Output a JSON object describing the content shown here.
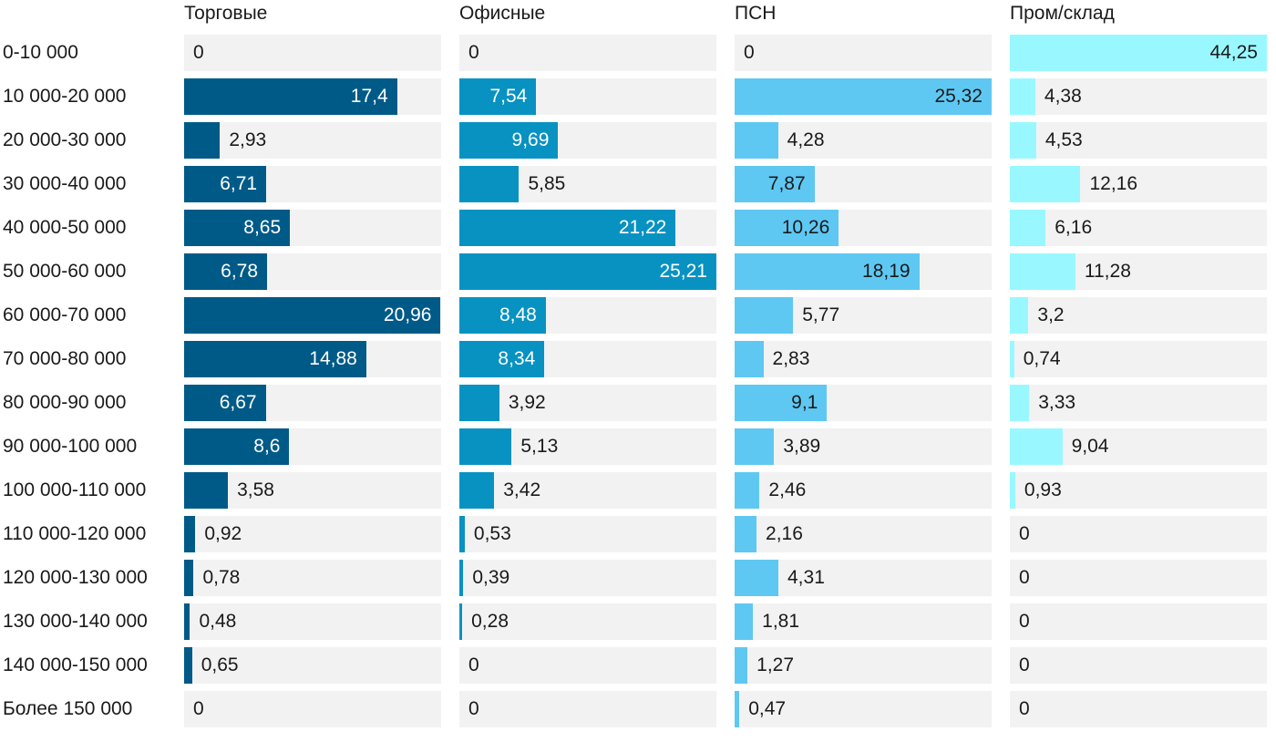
{
  "chart_data": {
    "type": "bar",
    "orientation": "horizontal",
    "layout": "small-multiples",
    "categories": [
      "0-10 000",
      "10 000-20 000",
      "20 000-30 000",
      "30 000-40 000",
      "40 000-50 000",
      "50 000-60 000",
      "60 000-70 000",
      "70 000-80 000",
      "80 000-90 000",
      "90 000-100 000",
      "100 000-110 000",
      "110 000-120 000",
      "120 000-130 000",
      "130 000-140 000",
      "140 000-150 000",
      "Более 150 000"
    ],
    "series": [
      {
        "name": "Торговые",
        "color": "#005a87",
        "max": 21,
        "values": [
          0,
          17.4,
          2.93,
          6.71,
          8.65,
          6.78,
          20.96,
          14.88,
          6.67,
          8.6,
          3.58,
          0.92,
          0.78,
          0.48,
          0.65,
          0
        ],
        "labels": [
          "0",
          "17,4",
          "2,93",
          "6,71",
          "8,65",
          "6,78",
          "20,96",
          "14,88",
          "6,67",
          "8,6",
          "3,58",
          "0,92",
          "0,78",
          "0,48",
          "0,65",
          "0"
        ]
      },
      {
        "name": "Офисные",
        "color": "#0892c2",
        "max": 25.21,
        "values": [
          0,
          7.54,
          9.69,
          5.85,
          21.22,
          25.21,
          8.48,
          8.34,
          3.92,
          5.13,
          3.42,
          0.53,
          0.39,
          0.28,
          0,
          0
        ],
        "labels": [
          "0",
          "7,54",
          "9,69",
          "5,85",
          "21,22",
          "25,21",
          "8,48",
          "8,34",
          "3,92",
          "5,13",
          "3,42",
          "0,53",
          "0,39",
          "0,28",
          "0",
          "0"
        ]
      },
      {
        "name": "ПСН",
        "color": "#5ec8f2",
        "max": 25.32,
        "values": [
          0,
          25.32,
          4.28,
          7.87,
          10.26,
          18.19,
          5.77,
          2.83,
          9.1,
          3.89,
          2.46,
          2.16,
          4.31,
          1.81,
          1.27,
          0.47
        ],
        "labels": [
          "0",
          "25,32",
          "4,28",
          "7,87",
          "10,26",
          "18,19",
          "5,77",
          "2,83",
          "9,1",
          "3,89",
          "2,46",
          "2,16",
          "4,31",
          "1,81",
          "1,27",
          "0,47"
        ]
      },
      {
        "name": "Пром/склад",
        "color": "#99f8ff",
        "max": 44.25,
        "values": [
          44.25,
          4.38,
          4.53,
          12.16,
          6.16,
          11.28,
          3.2,
          0.74,
          3.33,
          9.04,
          0.93,
          0,
          0,
          0,
          0,
          0
        ],
        "labels": [
          "44,25",
          "4,38",
          "4,53",
          "12,16",
          "6,16",
          "11,28",
          "3,2",
          "0,74",
          "3,33",
          "9,04",
          "0,93",
          "0",
          "0",
          "0",
          "0",
          "0"
        ]
      }
    ],
    "value_label_inside_colors": [
      "#005a87",
      "#0892c2",
      "#5ec8f2",
      "#99f8ff"
    ],
    "track_color": "#f2f2f2",
    "grid": false,
    "legend": "none"
  }
}
